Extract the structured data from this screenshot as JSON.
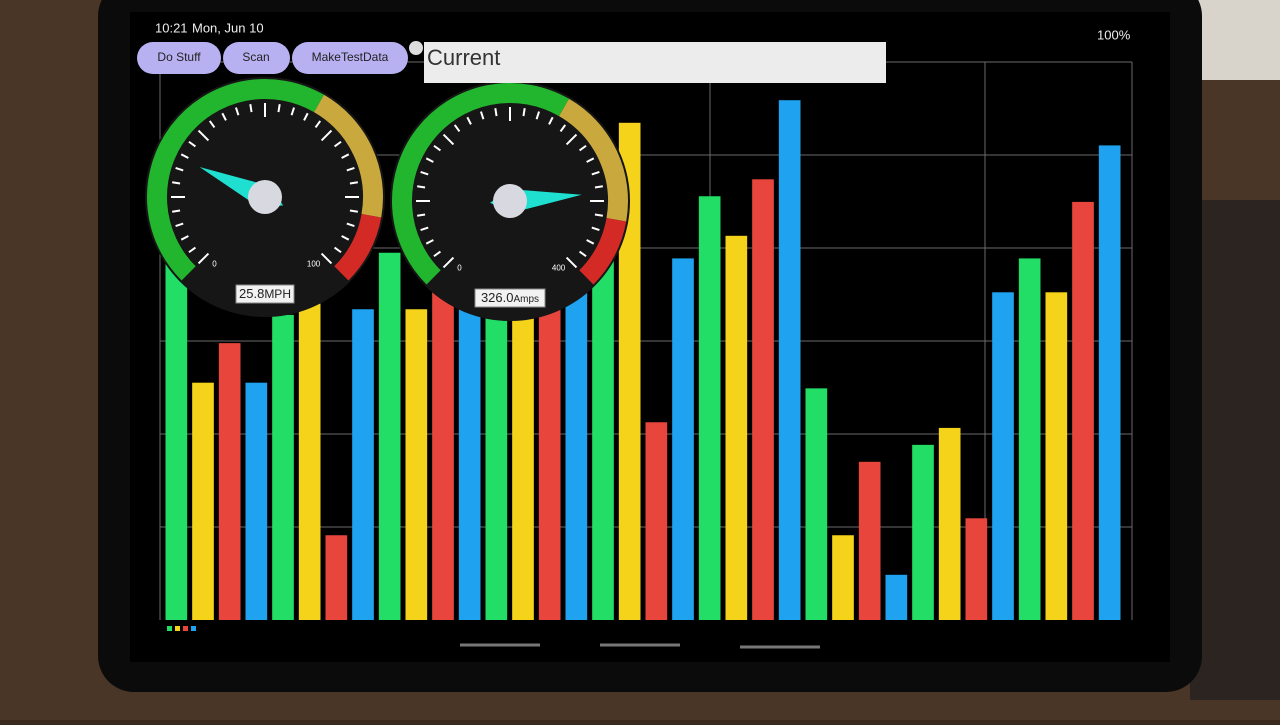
{
  "status_bar": {
    "time": "10:21",
    "date": "Mon, Jun 10",
    "battery": "100%"
  },
  "buttons": [
    "Do Stuff",
    "Scan",
    "MakeTestData"
  ],
  "input": {
    "value": "Current"
  },
  "gauges": [
    {
      "min": 0,
      "max": 100,
      "value": 25.8,
      "unit": "MPH"
    },
    {
      "min": 0,
      "max": 400,
      "value": 326.0,
      "value_label": "326.0",
      "unit": "Amps"
    }
  ],
  "chart_data": {
    "type": "bar",
    "colors": [
      "#22dd66",
      "#f5d31a",
      "#e8463c",
      "#1fa3f0"
    ],
    "values": [
      65,
      42,
      49,
      42,
      54,
      56,
      15,
      55,
      65,
      55,
      58,
      57,
      55,
      55,
      57,
      58,
      64,
      88,
      35,
      64,
      75,
      68,
      78,
      92,
      41,
      15,
      28,
      8,
      31,
      34,
      18,
      58,
      64,
      58,
      74,
      84
    ],
    "ylim": [
      0,
      100
    ],
    "grid": true
  }
}
